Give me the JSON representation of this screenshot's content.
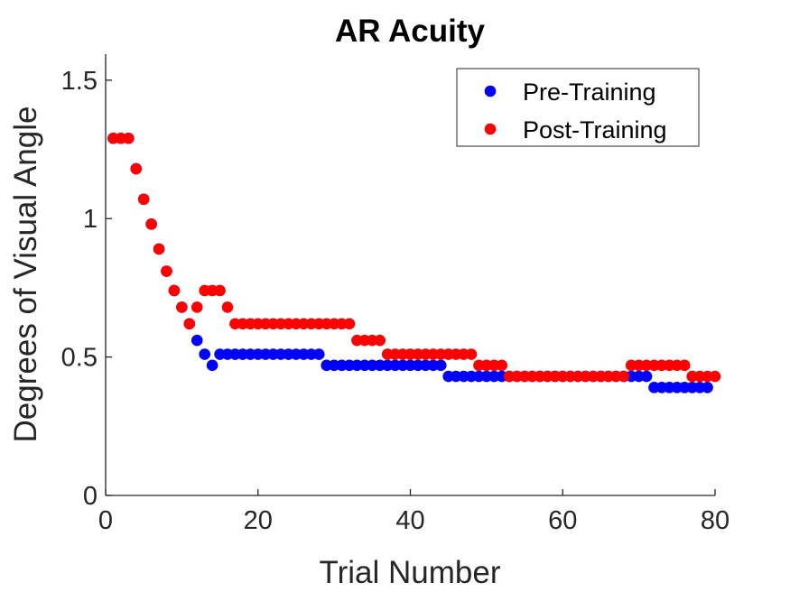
{
  "chart_data": {
    "type": "scatter",
    "title": "AR Acuity",
    "xlabel": "Trial Number",
    "ylabel": "Degrees of Visual Angle",
    "xlim": [
      0,
      80
    ],
    "ylim": [
      0,
      1.55
    ],
    "xticks": [
      0,
      20,
      40,
      60,
      80
    ],
    "xtick_labels": [
      "0",
      "20",
      "40",
      "60",
      "80"
    ],
    "yticks": [
      0,
      0.5,
      1,
      1.5
    ],
    "ytick_labels": [
      "0",
      "0.5",
      "1",
      "1.5"
    ],
    "grid": false,
    "legend_position": "top-right",
    "series": [
      {
        "name": "Pre-Training",
        "color": "#0000ff",
        "x": [
          1,
          2,
          3,
          4,
          5,
          6,
          7,
          8,
          9,
          10,
          11,
          12,
          13,
          14,
          15,
          16,
          17,
          18,
          19,
          20,
          21,
          22,
          23,
          24,
          25,
          26,
          27,
          28,
          29,
          30,
          31,
          32,
          33,
          34,
          35,
          36,
          37,
          38,
          39,
          40,
          41,
          42,
          43,
          44,
          45,
          46,
          47,
          48,
          49,
          50,
          51,
          52,
          53,
          54,
          55,
          56,
          57,
          58,
          59,
          60,
          61,
          62,
          63,
          64,
          65,
          66,
          67,
          68,
          69,
          70,
          71,
          72,
          73,
          74,
          75,
          76,
          77,
          78,
          79
        ],
        "y": [
          1.29,
          1.29,
          1.29,
          1.18,
          1.07,
          0.98,
          0.89,
          0.81,
          0.74,
          0.68,
          0.62,
          0.56,
          0.51,
          0.47,
          0.51,
          0.51,
          0.51,
          0.51,
          0.51,
          0.51,
          0.51,
          0.51,
          0.51,
          0.51,
          0.51,
          0.51,
          0.51,
          0.51,
          0.47,
          0.47,
          0.47,
          0.47,
          0.47,
          0.47,
          0.47,
          0.47,
          0.47,
          0.47,
          0.47,
          0.47,
          0.47,
          0.47,
          0.47,
          0.47,
          0.43,
          0.43,
          0.43,
          0.43,
          0.43,
          0.43,
          0.43,
          0.43,
          0.43,
          0.43,
          0.43,
          0.43,
          0.43,
          0.43,
          0.43,
          0.43,
          0.43,
          0.43,
          0.43,
          0.43,
          0.43,
          0.43,
          0.43,
          0.43,
          0.43,
          0.43,
          0.43,
          0.39,
          0.39,
          0.39,
          0.39,
          0.39,
          0.39,
          0.39,
          0.39
        ]
      },
      {
        "name": "Post-Training",
        "color": "#ff0000",
        "x": [
          1,
          2,
          3,
          4,
          5,
          6,
          7,
          8,
          9,
          10,
          11,
          12,
          13,
          14,
          15,
          16,
          17,
          18,
          19,
          20,
          21,
          22,
          23,
          24,
          25,
          26,
          27,
          28,
          29,
          30,
          31,
          32,
          33,
          34,
          35,
          36,
          37,
          38,
          39,
          40,
          41,
          42,
          43,
          44,
          45,
          46,
          47,
          48,
          49,
          50,
          51,
          52,
          53,
          54,
          55,
          56,
          57,
          58,
          59,
          60,
          61,
          62,
          63,
          64,
          65,
          66,
          67,
          68,
          69,
          70,
          71,
          72,
          73,
          74,
          75,
          76,
          77,
          78,
          79,
          80
        ],
        "y": [
          1.29,
          1.29,
          1.29,
          1.18,
          1.07,
          0.98,
          0.89,
          0.81,
          0.74,
          0.68,
          0.62,
          0.68,
          0.74,
          0.74,
          0.74,
          0.68,
          0.62,
          0.62,
          0.62,
          0.62,
          0.62,
          0.62,
          0.62,
          0.62,
          0.62,
          0.62,
          0.62,
          0.62,
          0.62,
          0.62,
          0.62,
          0.62,
          0.56,
          0.56,
          0.56,
          0.56,
          0.51,
          0.51,
          0.51,
          0.51,
          0.51,
          0.51,
          0.51,
          0.51,
          0.51,
          0.51,
          0.51,
          0.51,
          0.47,
          0.47,
          0.47,
          0.47,
          0.43,
          0.43,
          0.43,
          0.43,
          0.43,
          0.43,
          0.43,
          0.43,
          0.43,
          0.43,
          0.43,
          0.43,
          0.43,
          0.43,
          0.43,
          0.43,
          0.47,
          0.47,
          0.47,
          0.47,
          0.47,
          0.47,
          0.47,
          0.47,
          0.43,
          0.43,
          0.43,
          0.43
        ]
      }
    ]
  }
}
